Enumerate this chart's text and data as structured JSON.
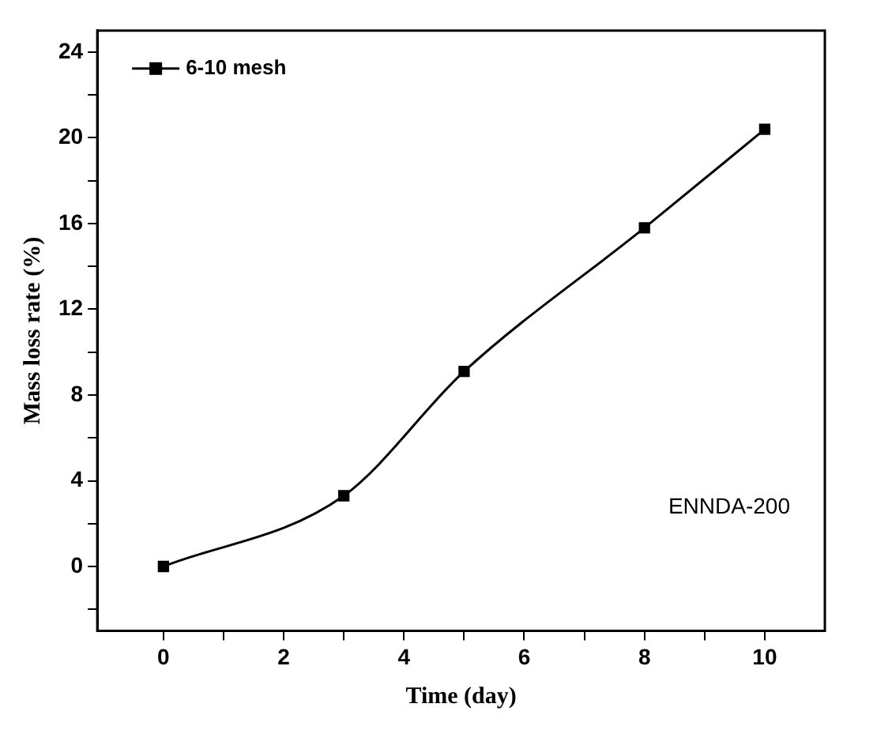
{
  "chart_data": {
    "type": "line",
    "xlabel": "Time (day)",
    "ylabel": "Mass loss rate (%)",
    "x": [
      0,
      3,
      5,
      8,
      10
    ],
    "series": [
      {
        "name": "6-10 mesh",
        "color": "#000000",
        "values": [
          0,
          3.3,
          9.1,
          15.8,
          20.4
        ]
      }
    ],
    "xlim": [
      -1.1,
      11
    ],
    "xticks": [
      0,
      {
        "value": 1,
        "label": null
      },
      2,
      {
        "value": 3,
        "label": null
      },
      4,
      {
        "value": 5,
        "label": null
      },
      6,
      {
        "value": 7,
        "label": null
      },
      8,
      {
        "value": 9,
        "label": null
      },
      10
    ],
    "ylim": [
      -3,
      25
    ],
    "yticks": [
      {
        "value": -2,
        "label": null
      },
      0,
      {
        "value": 2,
        "label": null
      },
      4,
      {
        "value": 6,
        "label": null
      },
      8,
      {
        "value": 10,
        "label": null
      },
      12,
      {
        "value": 14,
        "label": null
      },
      16,
      {
        "value": 18,
        "label": null
      },
      20,
      {
        "value": 22,
        "label": null
      },
      24
    ],
    "annotations": [
      "ENNDA-200"
    ],
    "legend": "top left",
    "marker": "square",
    "line_style": "solid",
    "grid": false
  }
}
